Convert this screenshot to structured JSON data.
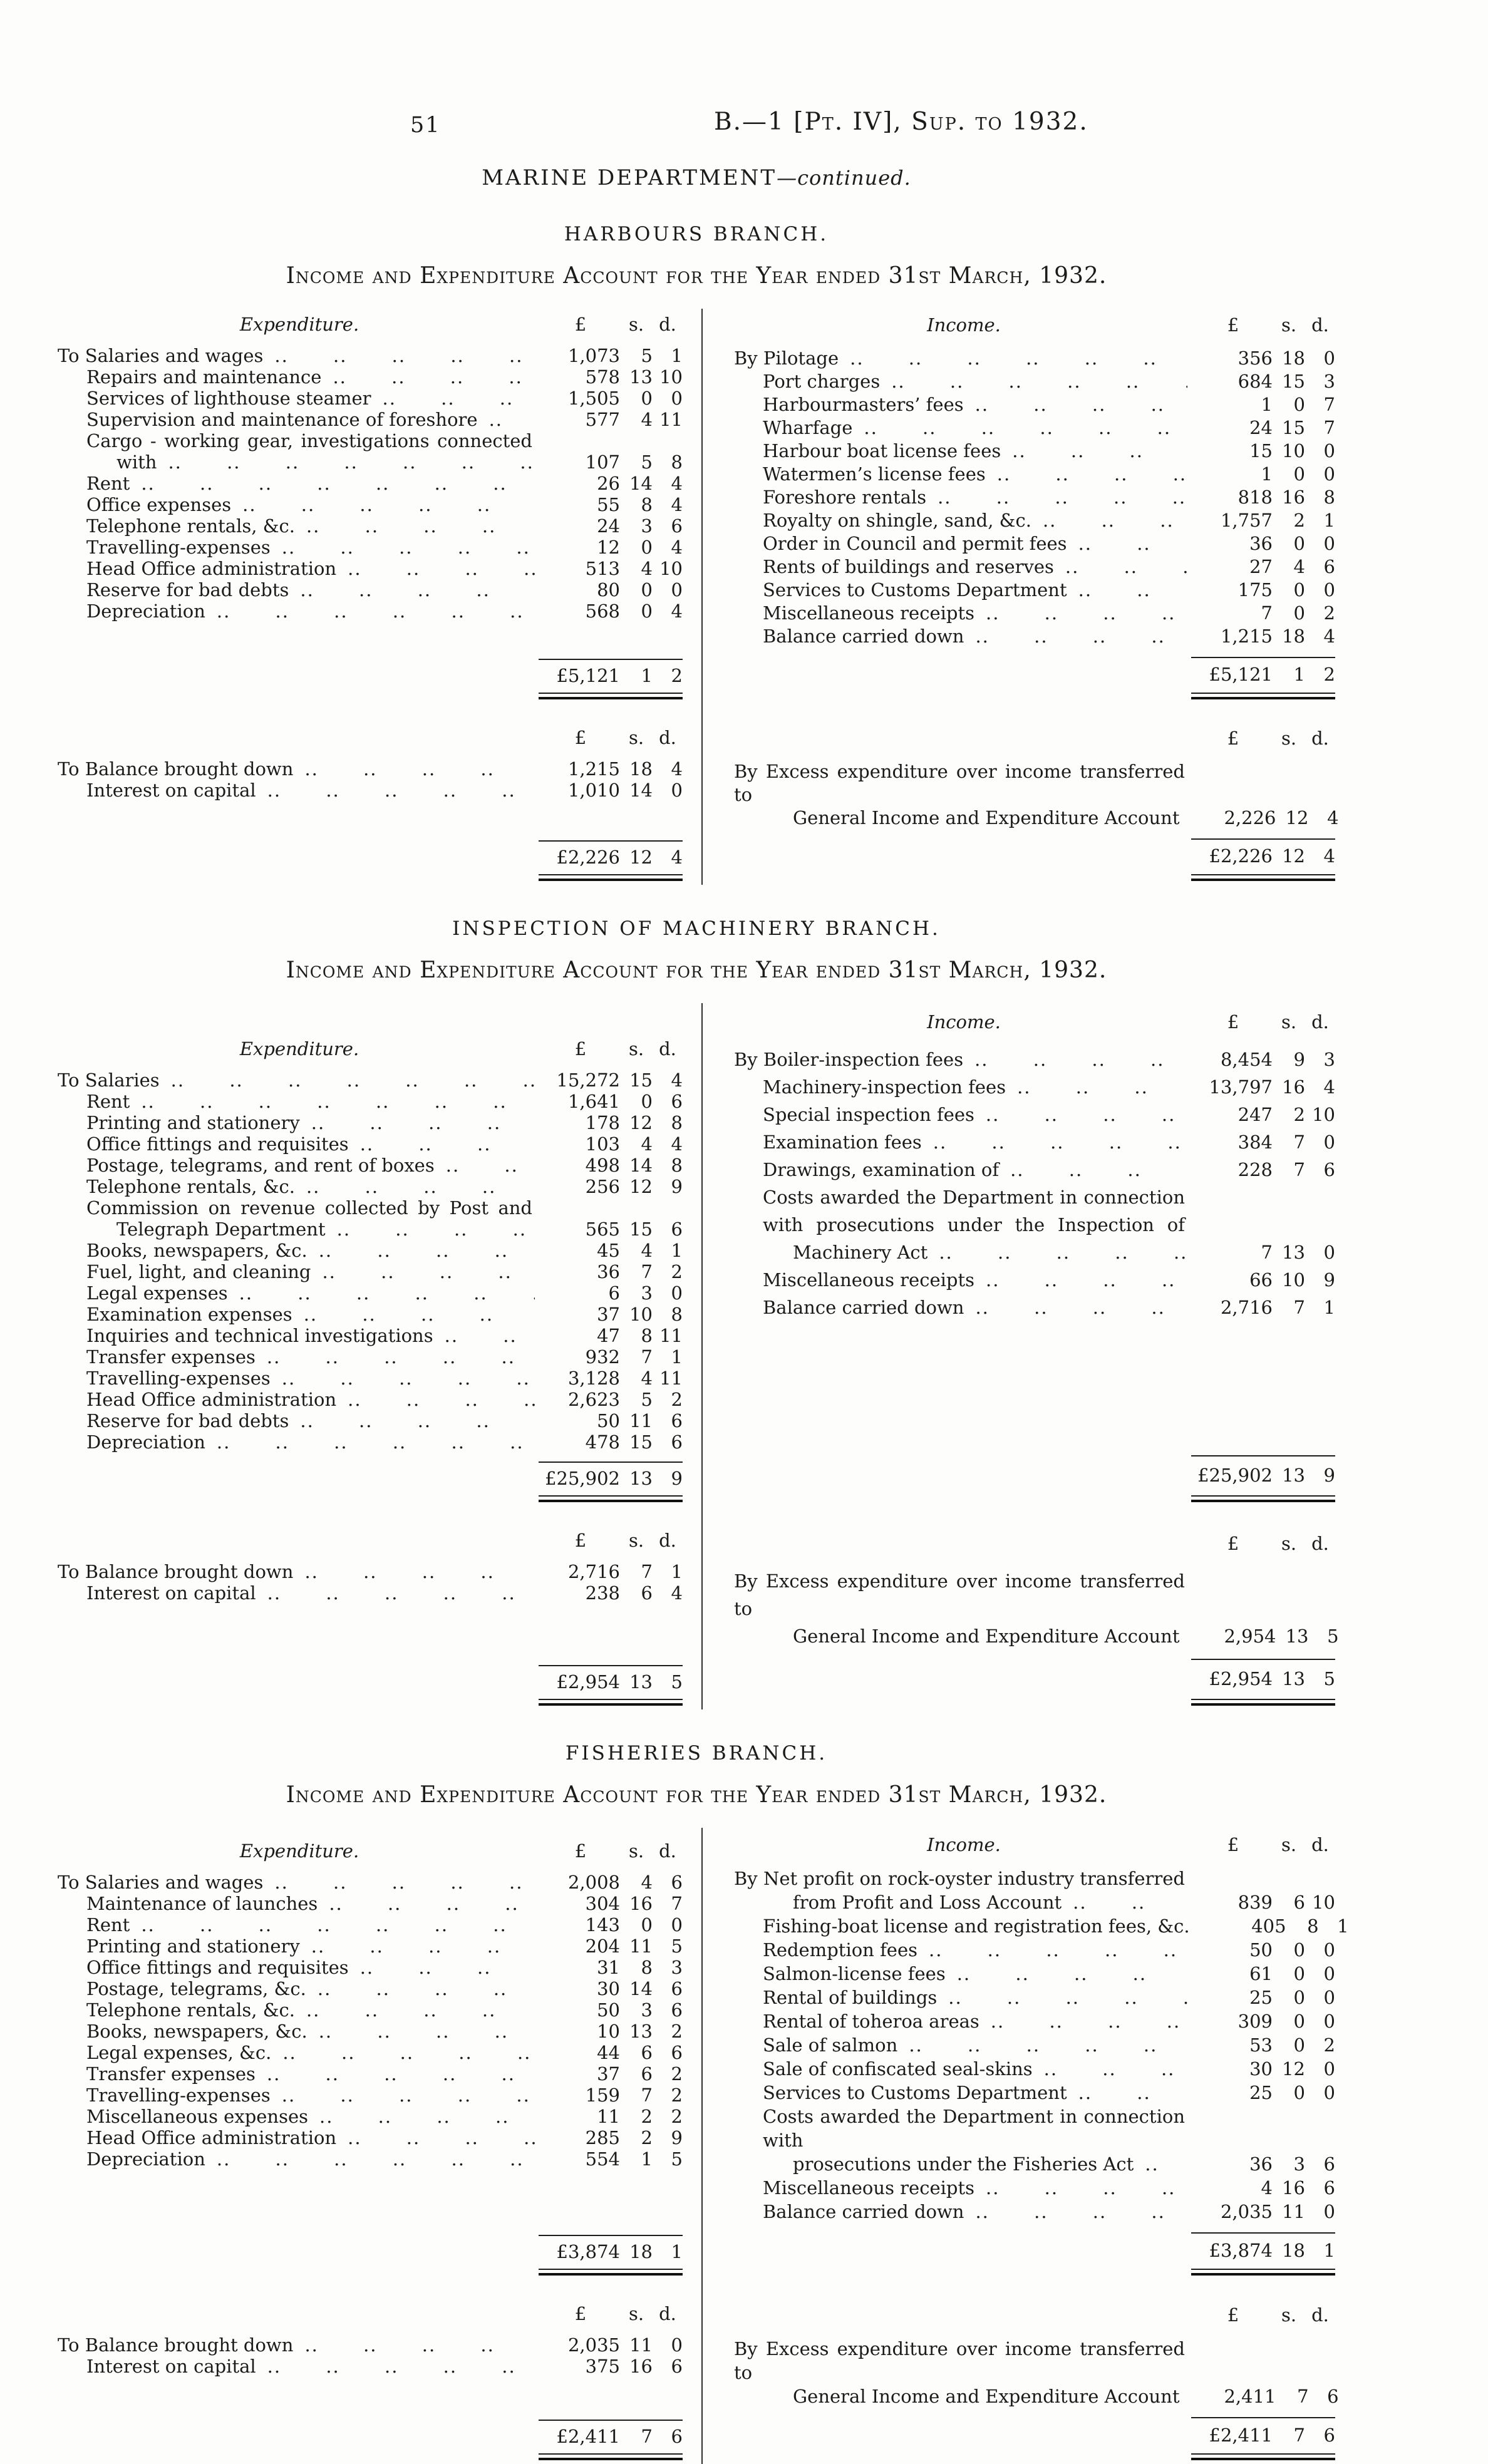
{
  "page": {
    "number": "51",
    "code": "B.—1 [Pt. IV], Sup. to 1932.",
    "department": "MARINE DEPARTMENT",
    "department_suffix": "—continued."
  },
  "headings": {
    "expenditure": "Expenditure.",
    "income": "Income."
  },
  "columns": {
    "pounds": "£",
    "shillings": "s.",
    "pence": "d."
  },
  "sections": [
    {
      "id": "harbours",
      "branch": "HARBOURS BRANCH.",
      "account_title": "Income and Expenditure Account for the Year ended 31st March, 1932.",
      "part1": {
        "left": {
          "rows": [
            {
              "prefix": "To",
              "label": "Salaries and wages",
              "a": "1,073",
              "s": "5",
              "d": "1"
            },
            {
              "label": "Repairs and maintenance",
              "a": "578",
              "s": "13",
              "d": "10"
            },
            {
              "label": "Services of lighthouse steamer",
              "a": "1,505",
              "s": "0",
              "d": "0"
            },
            {
              "label": "Supervision and maintenance of foreshore",
              "a": "577",
              "s": "4",
              "d": "11"
            },
            {
              "pre": [
                "Cargo - working gear, investigations connected"
              ],
              "label": "with",
              "a": "107",
              "s": "5",
              "d": "8"
            },
            {
              "label": "Rent",
              "a": "26",
              "s": "14",
              "d": "4"
            },
            {
              "label": "Office expenses",
              "a": "55",
              "s": "8",
              "d": "4"
            },
            {
              "label": "Telephone rentals, &c.",
              "a": "24",
              "s": "3",
              "d": "6"
            },
            {
              "label": "Travelling-expenses",
              "a": "12",
              "s": "0",
              "d": "4"
            },
            {
              "label": "Head Office administration",
              "a": "513",
              "s": "4",
              "d": "10"
            },
            {
              "label": "Reserve for bad debts",
              "a": "80",
              "s": "0",
              "d": "0"
            },
            {
              "label": "Depreciation",
              "a": "568",
              "s": "0",
              "d": "4"
            }
          ],
          "total": {
            "a": "£5,121",
            "s": "1",
            "d": "2"
          }
        },
        "right": {
          "rows": [
            {
              "prefix": "By",
              "label": "Pilotage",
              "a": "356",
              "s": "18",
              "d": "0"
            },
            {
              "label": "Port charges",
              "a": "684",
              "s": "15",
              "d": "3"
            },
            {
              "label": "Harbourmasters’ fees",
              "a": "1",
              "s": "0",
              "d": "7"
            },
            {
              "label": "Wharfage",
              "a": "24",
              "s": "15",
              "d": "7"
            },
            {
              "label": "Harbour boat license fees",
              "a": "15",
              "s": "10",
              "d": "0"
            },
            {
              "label": "Watermen’s license fees",
              "a": "1",
              "s": "0",
              "d": "0"
            },
            {
              "label": "Foreshore rentals",
              "a": "818",
              "s": "16",
              "d": "8"
            },
            {
              "label": "Royalty on shingle, sand, &c.",
              "a": "1,757",
              "s": "2",
              "d": "1"
            },
            {
              "label": "Order in Council and permit fees",
              "a": "36",
              "s": "0",
              "d": "0"
            },
            {
              "label": "Rents of buildings and reserves",
              "a": "27",
              "s": "4",
              "d": "6"
            },
            {
              "label": "Services to Customs Department",
              "a": "175",
              "s": "0",
              "d": "0"
            },
            {
              "label": "Miscellaneous receipts",
              "a": "7",
              "s": "0",
              "d": "2"
            },
            {
              "label": "Balance carried down",
              "a": "1,215",
              "s": "18",
              "d": "4"
            }
          ],
          "total": {
            "a": "£5,121",
            "s": "1",
            "d": "2"
          }
        }
      },
      "part2": {
        "left": {
          "rows": [
            {
              "prefix": "To",
              "label": "Balance brought down",
              "a": "1,215",
              "s": "18",
              "d": "4"
            },
            {
              "label": "Interest on capital",
              "a": "1,010",
              "s": "14",
              "d": "0"
            }
          ],
          "total": {
            "a": "£2,226",
            "s": "12",
            "d": "4"
          }
        },
        "right": {
          "rows": [
            {
              "prefix": "By",
              "pre": [
                "Excess expenditure over income transferred to"
              ],
              "label": "General Income and Expenditure Account",
              "a": "2,226",
              "s": "12",
              "d": "4"
            }
          ],
          "total": {
            "a": "£2,226",
            "s": "12",
            "d": "4"
          }
        }
      }
    },
    {
      "id": "machinery",
      "branch": "INSPECTION OF MACHINERY BRANCH.",
      "account_title": "Income and Expenditure Account for the Year ended 31st March, 1932.",
      "part1": {
        "left": {
          "rows": [
            {
              "prefix": "To",
              "label": "Salaries",
              "a": "15,272",
              "s": "15",
              "d": "4"
            },
            {
              "label": "Rent",
              "a": "1,641",
              "s": "0",
              "d": "6"
            },
            {
              "label": "Printing and stationery",
              "a": "178",
              "s": "12",
              "d": "8"
            },
            {
              "label": "Office fittings and requisites",
              "a": "103",
              "s": "4",
              "d": "4"
            },
            {
              "label": "Postage, telegrams, and rent of boxes",
              "a": "498",
              "s": "14",
              "d": "8"
            },
            {
              "label": "Telephone rentals, &c.",
              "a": "256",
              "s": "12",
              "d": "9"
            },
            {
              "pre": [
                "Commission on revenue collected by Post and"
              ],
              "label": "Telegraph Department",
              "a": "565",
              "s": "15",
              "d": "6"
            },
            {
              "label": "Books, newspapers, &c.",
              "a": "45",
              "s": "4",
              "d": "1"
            },
            {
              "label": "Fuel, light, and cleaning",
              "a": "36",
              "s": "7",
              "d": "2"
            },
            {
              "label": "Legal expenses",
              "a": "6",
              "s": "3",
              "d": "0"
            },
            {
              "label": "Examination expenses",
              "a": "37",
              "s": "10",
              "d": "8"
            },
            {
              "label": "Inquiries and technical investigations",
              "a": "47",
              "s": "8",
              "d": "11"
            },
            {
              "label": "Transfer expenses",
              "a": "932",
              "s": "7",
              "d": "1"
            },
            {
              "label": "Travelling-expenses",
              "a": "3,128",
              "s": "4",
              "d": "11"
            },
            {
              "label": "Head Office administration",
              "a": "2,623",
              "s": "5",
              "d": "2"
            },
            {
              "label": "Reserve for bad debts",
              "a": "50",
              "s": "11",
              "d": "6"
            },
            {
              "label": "Depreciation",
              "a": "478",
              "s": "15",
              "d": "6"
            }
          ],
          "total": {
            "a": "£25,902",
            "s": "13",
            "d": "9"
          }
        },
        "right": {
          "rows": [
            {
              "prefix": "By",
              "label": "Boiler-inspection fees",
              "a": "8,454",
              "s": "9",
              "d": "3"
            },
            {
              "label": "Machinery-inspection fees",
              "a": "13,797",
              "s": "16",
              "d": "4"
            },
            {
              "label": "Special inspection fees",
              "a": "247",
              "s": "2",
              "d": "10"
            },
            {
              "label": "Examination fees",
              "a": "384",
              "s": "7",
              "d": "0"
            },
            {
              "label": "Drawings, examination of",
              "a": "228",
              "s": "7",
              "d": "6"
            },
            {
              "pre": [
                "Costs awarded the Department in connection",
                "with prosecutions under the Inspection of"
              ],
              "label": "Machinery Act",
              "a": "7",
              "s": "13",
              "d": "0"
            },
            {
              "label": "Miscellaneous receipts",
              "a": "66",
              "s": "10",
              "d": "9"
            },
            {
              "label": "Balance carried down",
              "a": "2,716",
              "s": "7",
              "d": "1"
            }
          ],
          "total": {
            "a": "£25,902",
            "s": "13",
            "d": "9"
          }
        }
      },
      "part2": {
        "left": {
          "rows": [
            {
              "prefix": "To",
              "label": "Balance brought down",
              "a": "2,716",
              "s": "7",
              "d": "1"
            },
            {
              "label": "Interest on capital",
              "a": "238",
              "s": "6",
              "d": "4"
            }
          ],
          "total": {
            "a": "£2,954",
            "s": "13",
            "d": "5"
          }
        },
        "right": {
          "rows": [
            {
              "prefix": "By",
              "pre": [
                "Excess expenditure over income transferred to"
              ],
              "label": "General Income and Expenditure Account",
              "a": "2,954",
              "s": "13",
              "d": "5"
            }
          ],
          "total": {
            "a": "£2,954",
            "s": "13",
            "d": "5"
          }
        }
      }
    },
    {
      "id": "fisheries",
      "branch": "FISHERIES BRANCH.",
      "account_title": "Income and Expenditure Account for the Year ended 31st March, 1932.",
      "part1": {
        "left": {
          "rows": [
            {
              "prefix": "To",
              "label": "Salaries and wages",
              "a": "2,008",
              "s": "4",
              "d": "6"
            },
            {
              "label": "Maintenance of launches",
              "a": "304",
              "s": "16",
              "d": "7"
            },
            {
              "label": "Rent",
              "a": "143",
              "s": "0",
              "d": "0"
            },
            {
              "label": "Printing and stationery",
              "a": "204",
              "s": "11",
              "d": "5"
            },
            {
              "label": "Office fittings and requisites",
              "a": "31",
              "s": "8",
              "d": "3"
            },
            {
              "label": "Postage, telegrams, &c.",
              "a": "30",
              "s": "14",
              "d": "6"
            },
            {
              "label": "Telephone rentals, &c.",
              "a": "50",
              "s": "3",
              "d": "6"
            },
            {
              "label": "Books, newspapers, &c.",
              "a": "10",
              "s": "13",
              "d": "2"
            },
            {
              "label": "Legal expenses, &c.",
              "a": "44",
              "s": "6",
              "d": "6"
            },
            {
              "label": "Transfer expenses",
              "a": "37",
              "s": "6",
              "d": "2"
            },
            {
              "label": "Travelling-expenses",
              "a": "159",
              "s": "7",
              "d": "2"
            },
            {
              "label": "Miscellaneous expenses",
              "a": "11",
              "s": "2",
              "d": "2"
            },
            {
              "label": "Head Office administration",
              "a": "285",
              "s": "2",
              "d": "9"
            },
            {
              "label": "Depreciation",
              "a": "554",
              "s": "1",
              "d": "5"
            }
          ],
          "total": {
            "a": "£3,874",
            "s": "18",
            "d": "1"
          }
        },
        "right": {
          "rows": [
            {
              "prefix": "By",
              "pre": [
                "Net profit on rock-oyster industry transferred"
              ],
              "label": "from Profit and Loss Account",
              "a": "839",
              "s": "6",
              "d": "10"
            },
            {
              "label": "Fishing-boat license and registration fees, &c.",
              "a": "405",
              "s": "8",
              "d": "1"
            },
            {
              "label": "Redemption fees",
              "a": "50",
              "s": "0",
              "d": "0"
            },
            {
              "label": "Salmon-license fees",
              "a": "61",
              "s": "0",
              "d": "0"
            },
            {
              "label": "Rental of buildings",
              "a": "25",
              "s": "0",
              "d": "0"
            },
            {
              "label": "Rental of toheroa areas",
              "a": "309",
              "s": "0",
              "d": "0"
            },
            {
              "label": "Sale of salmon",
              "a": "53",
              "s": "0",
              "d": "2"
            },
            {
              "label": "Sale of confiscated seal-skins",
              "a": "30",
              "s": "12",
              "d": "0"
            },
            {
              "label": "Services to Customs Department",
              "a": "25",
              "s": "0",
              "d": "0"
            },
            {
              "pre": [
                "Costs awarded the Department in connection with"
              ],
              "label": "prosecutions under the Fisheries Act",
              "a": "36",
              "s": "3",
              "d": "6"
            },
            {
              "label": "Miscellaneous receipts",
              "a": "4",
              "s": "16",
              "d": "6"
            },
            {
              "label": "Balance carried down",
              "a": "2,035",
              "s": "11",
              "d": "0"
            }
          ],
          "total": {
            "a": "£3,874",
            "s": "18",
            "d": "1"
          }
        }
      },
      "part2": {
        "left": {
          "rows": [
            {
              "prefix": "To",
              "label": "Balance brought down",
              "a": "2,035",
              "s": "11",
              "d": "0"
            },
            {
              "label": "Interest on capital",
              "a": "375",
              "s": "16",
              "d": "6"
            }
          ],
          "total": {
            "a": "£2,411",
            "s": "7",
            "d": "6"
          }
        },
        "right": {
          "rows": [
            {
              "prefix": "By",
              "pre": [
                "Excess expenditure over income transferred to"
              ],
              "label": "General Income and Expenditure Account",
              "a": "2,411",
              "s": "7",
              "d": "6"
            }
          ],
          "total": {
            "a": "£2,411",
            "s": "7",
            "d": "6"
          }
        }
      }
    }
  ]
}
